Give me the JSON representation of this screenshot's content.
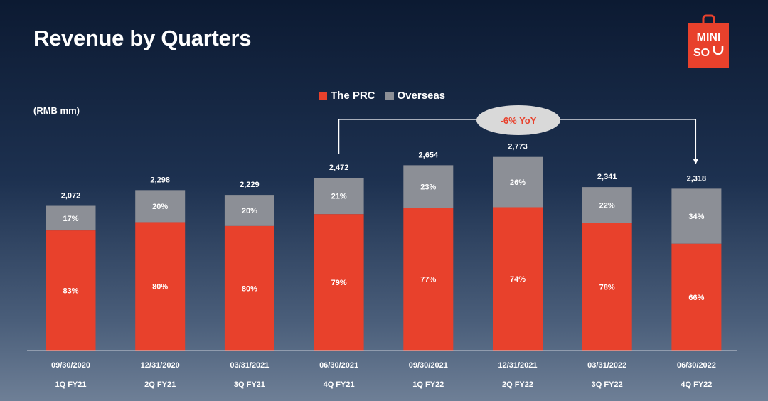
{
  "title": "Revenue by Quarters",
  "logo": {
    "line1": "MINI",
    "line2": "SO",
    "color": "#e8412c"
  },
  "chart_data": {
    "type": "bar",
    "stacked": true,
    "unit_label": "(RMB mm)",
    "categories": [
      "09/30/2020",
      "12/31/2020",
      "03/31/2021",
      "06/30/2021",
      "09/30/2021",
      "12/31/2021",
      "03/31/2022",
      "06/30/2022"
    ],
    "sub_categories": [
      "1Q FY21",
      "2Q FY21",
      "3Q FY21",
      "4Q FY21",
      "1Q FY22",
      "2Q FY22",
      "3Q FY22",
      "4Q FY22"
    ],
    "totals": [
      2072,
      2298,
      2229,
      2472,
      2654,
      2773,
      2341,
      2318
    ],
    "total_labels": [
      "2,072",
      "2,298",
      "2,229",
      "2,472",
      "2,654",
      "2,773",
      "2,341",
      "2,318"
    ],
    "series": [
      {
        "name": "The PRC",
        "color": "#e8412c",
        "share_labels": [
          "83%",
          "80%",
          "80%",
          "79%",
          "77%",
          "74%",
          "78%",
          "66%"
        ]
      },
      {
        "name": "Overseas",
        "color": "#8c8f96",
        "share_labels": [
          "17%",
          "20%",
          "20%",
          "21%",
          "23%",
          "26%",
          "22%",
          "34%"
        ]
      }
    ],
    "annotation": {
      "text": "-6% YoY",
      "from": "06/30/2021",
      "to": "06/30/2022"
    },
    "legend_position": "top",
    "grid": false
  }
}
